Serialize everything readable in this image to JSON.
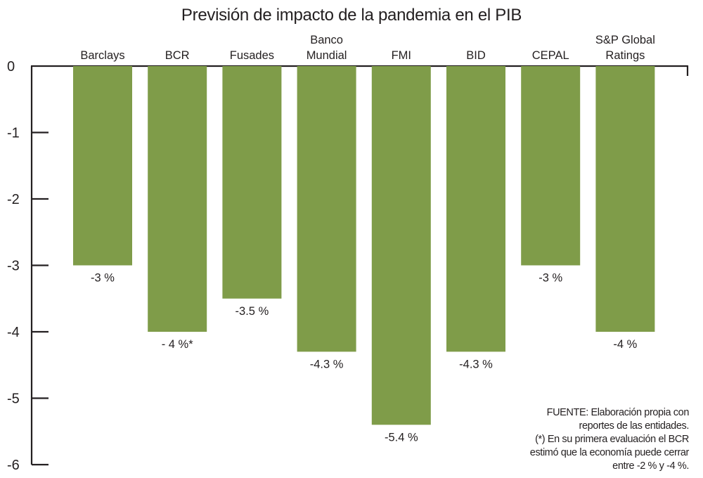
{
  "chart_data": {
    "type": "bar",
    "title": "Previsión de impacto de la pandemia en el PIB",
    "xlabel": "",
    "ylabel": "",
    "ylim": [
      -6,
      0
    ],
    "yticks": [
      0,
      -1,
      -2,
      -3,
      -4,
      -5,
      -6
    ],
    "ytick_labels": [
      "0",
      "-1",
      "-2",
      "-3",
      "-4",
      "-5",
      "-6"
    ],
    "grid": false,
    "categories": [
      [
        "Barclays"
      ],
      [
        "BCR"
      ],
      [
        "Fusades"
      ],
      [
        "Banco",
        "Mundial"
      ],
      [
        "FMI"
      ],
      [
        "BID"
      ],
      [
        "CEPAL"
      ],
      [
        "S&P Global",
        "Ratings"
      ]
    ],
    "values": [
      -3,
      -4,
      -3.5,
      -4.3,
      -5.4,
      -4.3,
      -3,
      -4
    ],
    "data_labels": [
      "-3 %",
      "- 4 %*",
      "-3.5 %",
      "-4.3 %",
      "-5.4 %",
      "-4.3 %",
      "-3 %",
      "-4 %"
    ],
    "bar_color": "#7f9c49",
    "axis_color": "#231f20"
  },
  "notes": [
    "FUENTE: Elaboración propia con",
    "reportes de las entidades.",
    "(*) En su primera evaluación el BCR",
    "estimó que la economía puede cerrar",
    "entre -2 % y -4 %."
  ]
}
